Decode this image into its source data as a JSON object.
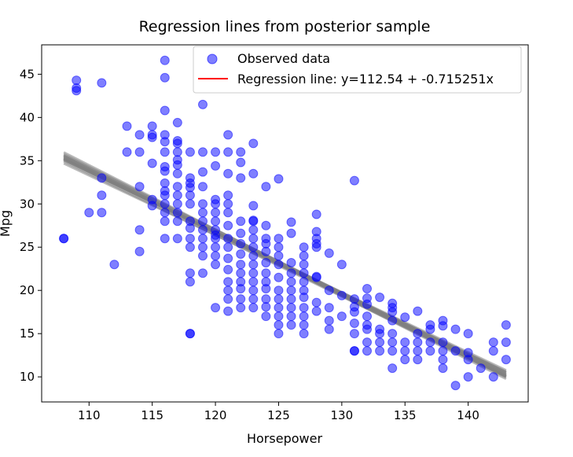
{
  "chart_data": {
    "type": "scatter",
    "title": "Regression lines from posterior sample",
    "xlabel": "Horsepower",
    "ylabel": "Mpg",
    "xlim": [
      106.25,
      144.75
    ],
    "ylim": [
      7.1,
      48.4
    ],
    "xticks": [
      110,
      115,
      120,
      125,
      130,
      135,
      140
    ],
    "yticks": [
      10,
      15,
      20,
      25,
      30,
      35,
      40,
      45
    ],
    "grid": false,
    "legend": {
      "placement": "top-right",
      "entries": [
        {
          "label": "Observed data",
          "marker": "circle",
          "color": "#0000ff"
        },
        {
          "label": "Regression line: y=112.54 + -0.715251x",
          "marker": "line",
          "color": "#ff0000"
        }
      ]
    },
    "colors": {
      "points": "#0000ff",
      "sample_lines": "#808080",
      "regression": "#ff0000"
    },
    "regression": {
      "intercept": 112.54,
      "slope": -0.715251
    },
    "sample_lines": [
      {
        "intercept": 112.54,
        "slope": -0.715251
      },
      {
        "intercept": 114.6,
        "slope": -0.73
      },
      {
        "intercept": 110.7,
        "slope": -0.7
      },
      {
        "intercept": 116.1,
        "slope": -0.742
      },
      {
        "intercept": 109.2,
        "slope": -0.69
      },
      {
        "intercept": 113.5,
        "slope": -0.721
      },
      {
        "intercept": 111.6,
        "slope": -0.71
      },
      {
        "intercept": 115.3,
        "slope": -0.738
      },
      {
        "intercept": 110.0,
        "slope": -0.694
      },
      {
        "intercept": 112.9,
        "slope": -0.719
      },
      {
        "intercept": 113.9,
        "slope": -0.726
      },
      {
        "intercept": 111.2,
        "slope": -0.704
      },
      {
        "intercept": 114.2,
        "slope": -0.729
      },
      {
        "intercept": 112.1,
        "slope": -0.712
      },
      {
        "intercept": 113.2,
        "slope": -0.721
      }
    ],
    "points": [
      [
        108,
        26
      ],
      [
        108,
        26
      ],
      [
        109,
        43.1
      ],
      [
        109,
        43.4
      ],
      [
        109,
        44.3
      ],
      [
        110,
        29
      ],
      [
        111,
        44
      ],
      [
        111,
        33
      ],
      [
        111,
        31
      ],
      [
        111,
        29
      ],
      [
        112,
        23
      ],
      [
        113,
        39
      ],
      [
        113,
        36
      ],
      [
        114,
        38
      ],
      [
        114,
        36
      ],
      [
        114,
        32
      ],
      [
        114,
        27
      ],
      [
        114,
        24.5
      ],
      [
        115,
        39
      ],
      [
        115,
        38
      ],
      [
        115,
        37.7
      ],
      [
        115,
        34.7
      ],
      [
        115,
        30.5
      ],
      [
        115,
        29.8
      ],
      [
        116,
        46.6
      ],
      [
        116,
        44.6
      ],
      [
        116,
        40.8
      ],
      [
        116,
        38
      ],
      [
        116,
        37.2
      ],
      [
        116,
        36
      ],
      [
        116,
        34.3
      ],
      [
        116,
        33.8
      ],
      [
        116,
        32.4
      ],
      [
        116,
        31.5
      ],
      [
        116,
        31
      ],
      [
        116,
        30
      ],
      [
        116,
        29
      ],
      [
        116,
        28
      ],
      [
        116,
        26
      ],
      [
        117,
        39.4
      ],
      [
        117,
        37.3
      ],
      [
        117,
        37
      ],
      [
        117,
        36
      ],
      [
        117,
        35.1
      ],
      [
        117,
        34.5
      ],
      [
        117,
        33.5
      ],
      [
        117,
        32
      ],
      [
        117,
        31
      ],
      [
        117,
        30
      ],
      [
        117,
        29
      ],
      [
        117,
        28
      ],
      [
        117,
        26
      ],
      [
        118,
        36
      ],
      [
        118,
        33
      ],
      [
        118,
        32.4
      ],
      [
        118,
        31.9
      ],
      [
        118,
        31
      ],
      [
        118,
        30
      ],
      [
        118,
        28
      ],
      [
        118,
        27.2
      ],
      [
        118,
        26
      ],
      [
        118,
        25
      ],
      [
        118,
        22
      ],
      [
        118,
        21
      ],
      [
        118,
        15
      ],
      [
        118,
        15
      ],
      [
        119,
        41.5
      ],
      [
        119,
        36
      ],
      [
        119,
        33.7
      ],
      [
        119,
        32
      ],
      [
        119,
        30
      ],
      [
        119,
        29
      ],
      [
        119,
        28
      ],
      [
        119,
        27
      ],
      [
        119,
        26
      ],
      [
        119,
        25
      ],
      [
        119,
        24
      ],
      [
        119,
        22
      ],
      [
        120,
        36
      ],
      [
        120,
        34.4
      ],
      [
        120,
        30.5
      ],
      [
        120,
        30
      ],
      [
        120,
        29
      ],
      [
        120,
        28
      ],
      [
        120,
        27
      ],
      [
        120,
        26.4
      ],
      [
        120,
        26
      ],
      [
        120,
        25
      ],
      [
        120,
        24
      ],
      [
        120,
        23
      ],
      [
        120,
        18
      ],
      [
        121,
        38
      ],
      [
        121,
        36
      ],
      [
        121,
        33.5
      ],
      [
        121,
        31
      ],
      [
        121,
        30
      ],
      [
        121,
        29
      ],
      [
        121,
        27.5
      ],
      [
        121,
        26
      ],
      [
        121,
        25
      ],
      [
        121,
        23.7
      ],
      [
        121,
        22.4
      ],
      [
        121,
        21
      ],
      [
        121,
        20
      ],
      [
        121,
        19
      ],
      [
        121,
        17.6
      ],
      [
        122,
        36
      ],
      [
        122,
        34.8
      ],
      [
        122,
        33
      ],
      [
        122,
        28
      ],
      [
        122,
        26.6
      ],
      [
        122,
        25.4
      ],
      [
        122,
        24.2
      ],
      [
        122,
        23
      ],
      [
        122,
        22
      ],
      [
        122,
        21
      ],
      [
        122,
        20.2
      ],
      [
        122,
        19
      ],
      [
        122,
        18
      ],
      [
        123,
        37
      ],
      [
        123,
        33.5
      ],
      [
        123,
        29.8
      ],
      [
        123,
        28.1
      ],
      [
        123,
        28
      ],
      [
        123,
        27
      ],
      [
        123,
        26
      ],
      [
        123,
        25
      ],
      [
        123,
        24
      ],
      [
        123,
        23
      ],
      [
        123,
        22
      ],
      [
        123,
        21
      ],
      [
        123,
        20
      ],
      [
        123,
        19
      ],
      [
        123,
        18
      ],
      [
        124,
        32
      ],
      [
        124,
        27.5
      ],
      [
        124,
        26
      ],
      [
        124,
        25.4
      ],
      [
        124,
        24.5
      ],
      [
        124,
        23.2
      ],
      [
        124,
        22
      ],
      [
        124,
        21
      ],
      [
        124,
        20.2
      ],
      [
        124,
        19
      ],
      [
        124,
        18.1
      ],
      [
        124,
        17
      ],
      [
        125,
        32.9
      ],
      [
        125,
        26
      ],
      [
        125,
        25
      ],
      [
        125,
        24
      ],
      [
        125,
        23
      ],
      [
        125,
        21.5
      ],
      [
        125,
        20
      ],
      [
        125,
        19
      ],
      [
        125,
        18
      ],
      [
        125,
        17
      ],
      [
        125,
        16
      ],
      [
        125,
        15
      ],
      [
        126,
        27.9
      ],
      [
        126,
        26.6
      ],
      [
        126,
        23.2
      ],
      [
        126,
        22
      ],
      [
        126,
        21
      ],
      [
        126,
        20
      ],
      [
        126,
        19
      ],
      [
        126,
        18
      ],
      [
        126,
        17
      ],
      [
        126,
        16
      ],
      [
        127,
        25
      ],
      [
        127,
        24
      ],
      [
        127,
        23
      ],
      [
        127,
        22
      ],
      [
        127,
        21
      ],
      [
        127,
        20
      ],
      [
        127,
        19.2
      ],
      [
        127,
        18
      ],
      [
        127,
        17
      ],
      [
        127,
        16
      ],
      [
        127,
        15
      ],
      [
        128,
        28.8
      ],
      [
        128,
        26.8
      ],
      [
        128,
        26
      ],
      [
        128,
        25.4
      ],
      [
        128,
        25
      ],
      [
        128,
        21.6
      ],
      [
        128,
        21.5
      ],
      [
        128,
        18.6
      ],
      [
        128,
        17.6
      ],
      [
        129,
        24.3
      ],
      [
        129,
        20
      ],
      [
        129,
        18
      ],
      [
        129,
        16.5
      ],
      [
        129,
        15.5
      ],
      [
        130,
        23
      ],
      [
        130,
        19.4
      ],
      [
        130,
        17
      ],
      [
        131,
        32.7
      ],
      [
        131,
        19
      ],
      [
        131,
        18.1
      ],
      [
        131,
        17.5
      ],
      [
        131,
        16.2
      ],
      [
        131,
        15
      ],
      [
        131,
        13
      ],
      [
        131,
        13
      ],
      [
        132,
        20.2
      ],
      [
        132,
        19.1
      ],
      [
        132,
        18.4
      ],
      [
        132,
        17
      ],
      [
        132,
        16
      ],
      [
        132,
        15.5
      ],
      [
        132,
        14
      ],
      [
        132,
        13
      ],
      [
        133,
        19.2
      ],
      [
        133,
        15.5
      ],
      [
        133,
        15
      ],
      [
        133,
        14
      ],
      [
        133,
        13
      ],
      [
        134,
        18.5
      ],
      [
        134,
        18
      ],
      [
        134,
        17.5
      ],
      [
        134,
        16.5
      ],
      [
        134,
        15
      ],
      [
        134,
        14
      ],
      [
        134,
        13
      ],
      [
        134,
        11
      ],
      [
        135,
        16.9
      ],
      [
        135,
        14
      ],
      [
        135,
        13
      ],
      [
        135,
        12
      ],
      [
        136,
        17.6
      ],
      [
        136,
        15
      ],
      [
        136,
        14
      ],
      [
        136,
        13
      ],
      [
        136,
        12
      ],
      [
        137,
        16
      ],
      [
        137,
        15.5
      ],
      [
        137,
        14
      ],
      [
        137,
        13
      ],
      [
        138,
        16.5
      ],
      [
        138,
        15.9
      ],
      [
        138,
        14
      ],
      [
        138,
        13
      ],
      [
        138,
        12
      ],
      [
        138,
        11
      ],
      [
        139,
        15.5
      ],
      [
        139,
        13
      ],
      [
        139,
        9
      ],
      [
        140,
        15
      ],
      [
        140,
        12.8
      ],
      [
        140,
        12
      ],
      [
        140,
        10
      ],
      [
        141,
        11
      ],
      [
        142,
        14
      ],
      [
        142,
        13
      ],
      [
        142,
        10
      ],
      [
        143,
        16
      ],
      [
        143,
        14
      ],
      [
        143,
        12
      ]
    ]
  }
}
